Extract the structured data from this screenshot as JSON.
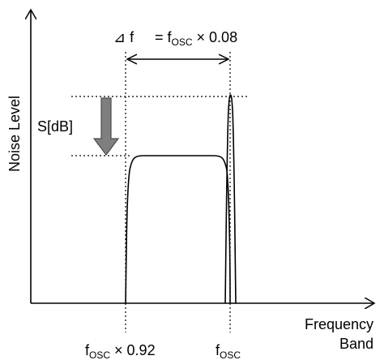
{
  "diagram": {
    "y_axis_label": "Noise Level",
    "x_axis_label_line1": "Frequency",
    "x_axis_label_line2": "Band",
    "delta_f_symbol": "⊿ f",
    "delta_f_eq_prefix": "= f",
    "delta_f_eq_sub": "OSC",
    "delta_f_eq_suffix": " × 0.08",
    "s_label": "S[dB]",
    "fosc_092_prefix": "f",
    "fosc_092_sub": "OSC",
    "fosc_092_suffix": " × 0.92",
    "fosc_prefix": "f",
    "fosc_sub": "OSC",
    "colors": {
      "line": "#000000",
      "arrow_fill": "#7f7f7f",
      "arrow_stroke": "#4d4d4d",
      "background": "#ffffff"
    }
  }
}
